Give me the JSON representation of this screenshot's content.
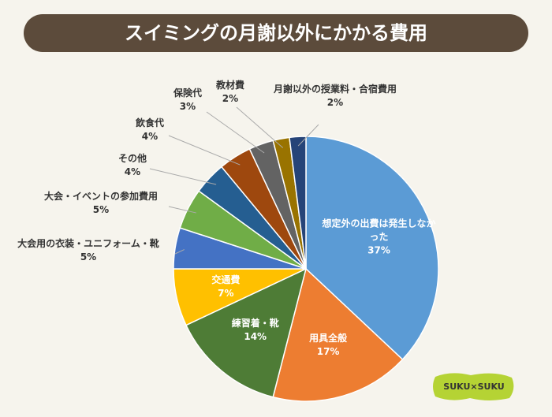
{
  "chart_data": {
    "type": "pie",
    "title": "スイミングの月謝以外にかかる費用",
    "categories": [
      "想定外の出費は発生しなかった",
      "用具全般",
      "練習着・靴",
      "交通費",
      "大会用の衣装・ユニフォーム・靴",
      "大会・イベントの参加費用",
      "その他",
      "飲食代",
      "保険代",
      "教材費",
      "月謝以外の授業料・合宿費用"
    ],
    "values": [
      37,
      17,
      14,
      7,
      5,
      5,
      4,
      4,
      3,
      2,
      2
    ],
    "value_labels": [
      "37%",
      "17%",
      "14%",
      "7%",
      "5%",
      "5%",
      "4%",
      "4%",
      "3%",
      "2%",
      "2%"
    ],
    "colors": [
      "#5b9bd5",
      "#ed7d31",
      "#4e7c36",
      "#ffc000",
      "#4472c4",
      "#70ad47",
      "#255e91",
      "#9e480e",
      "#636363",
      "#997300",
      "#264478"
    ]
  },
  "logo": "SUKU×SUKU"
}
